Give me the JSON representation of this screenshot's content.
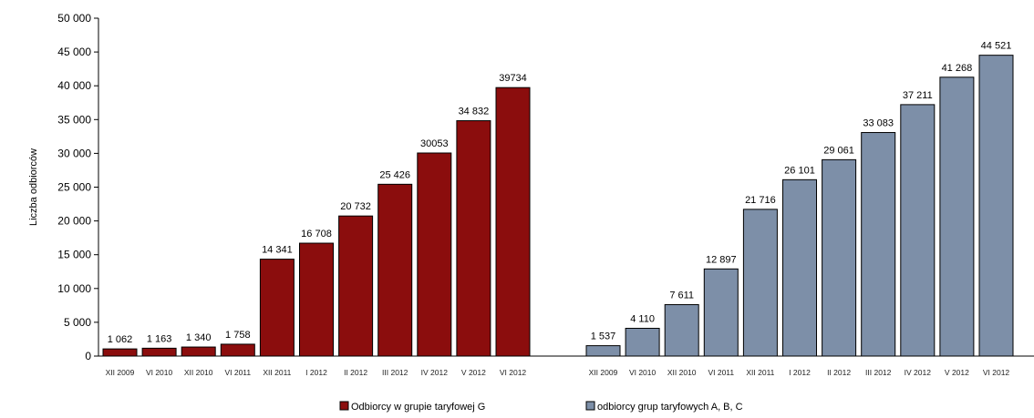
{
  "chart_data": [
    {
      "type": "bar",
      "ylabel": "Liczba odbiorców",
      "ylim": [
        0,
        50000
      ],
      "yticks": [
        0,
        5000,
        10000,
        15000,
        20000,
        25000,
        30000,
        35000,
        40000,
        45000,
        50000
      ],
      "ytick_labels": [
        "0",
        "5 000",
        "10 000",
        "15 000",
        "20 000",
        "25 000",
        "30 000",
        "35 000",
        "40 000",
        "45 000",
        "50 000"
      ],
      "grid": false,
      "legend_position": "bottom",
      "groups": [
        {
          "name": "Odbiorcy w grupie taryfowej G",
          "color": "#8B0D0D",
          "categories": [
            "XII 2009",
            "VI 2010",
            "XII 2010",
            "VI 2011",
            "XII 2011",
            "I 2012",
            "II 2012",
            "III 2012",
            "IV 2012",
            "V 2012",
            "VI 2012"
          ],
          "values": [
            1062,
            1163,
            1340,
            1758,
            14341,
            16708,
            20732,
            25426,
            30053,
            34832,
            39734
          ],
          "value_labels": [
            "1 062",
            "1 163",
            "1 340",
            "1 758",
            "14 341",
            "16 708",
            "20 732",
            "25 426",
            "30053",
            "34 832",
            "39734"
          ]
        },
        {
          "name": "odbiorcy grup taryfowych A, B, C",
          "color": "#7D8FA8",
          "categories": [
            "XII 2009",
            "VI 2010",
            "XII 2010",
            "VI 2011",
            "XII 2011",
            "I 2012",
            "II 2012",
            "III 2012",
            "IV 2012",
            "V 2012",
            "VI 2012"
          ],
          "values": [
            1537,
            4110,
            7611,
            12897,
            21716,
            26101,
            29061,
            33083,
            37211,
            41268,
            44521
          ],
          "value_labels": [
            "1 537",
            "4 110",
            "7 611",
            "12 897",
            "21 716",
            "26 101",
            "29 061",
            "33 083",
            "37 211",
            "41 268",
            "44 521"
          ]
        }
      ]
    }
  ]
}
